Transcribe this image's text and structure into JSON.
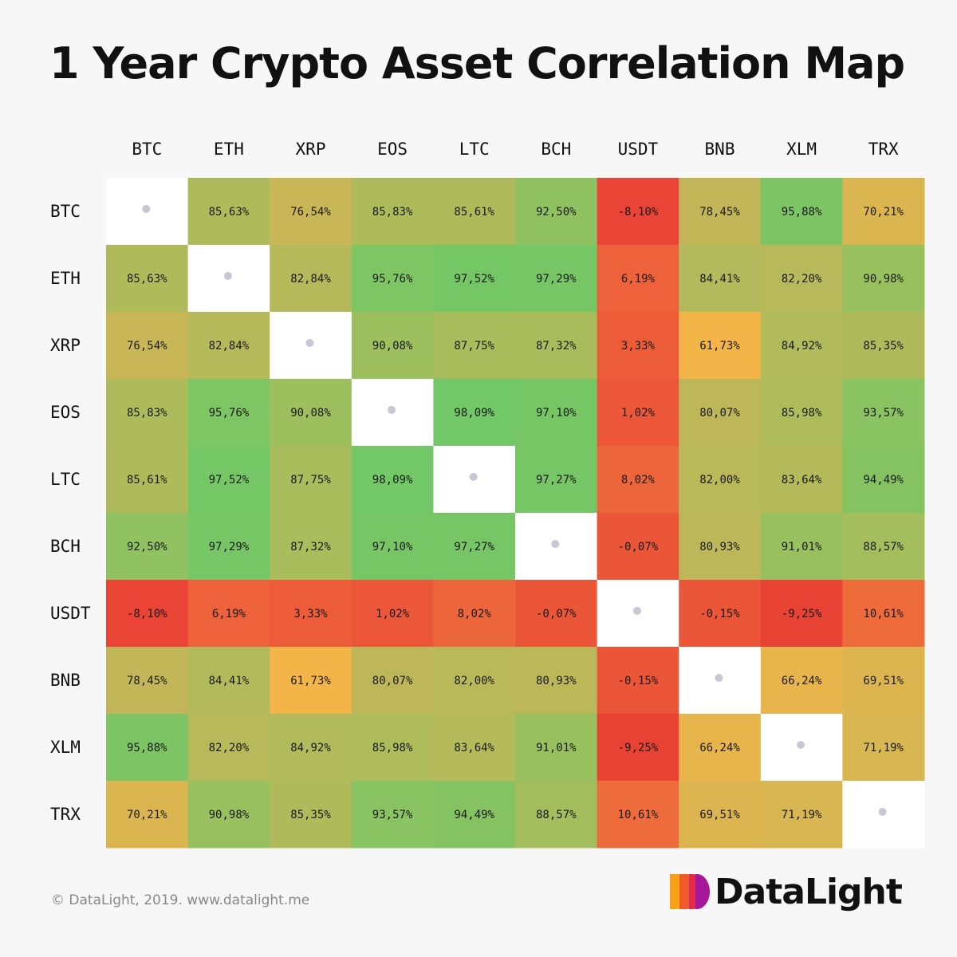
{
  "title": "1 Year Crypto Asset Correlation Map",
  "footer": {
    "copyright": "© DataLight, 2019. www.datalight.me",
    "logo_text": "DataLight",
    "logo_icon": "datalight-logo-icon"
  },
  "colors": {
    "background": "#f7f7f7",
    "diagonal": "#ffffff",
    "diagonal_dot": "#c8c8d4",
    "scale_low": "#e84034",
    "scale_mid_low": "#ee6a3c",
    "scale_mid": "#f3b548",
    "scale_mid_high": "#c4b658",
    "scale_high": "#a8bd5c",
    "scale_top": "#72c766"
  },
  "chart_data": {
    "type": "heatmap",
    "title": "1 Year Crypto Asset Correlation Map",
    "unit": "%",
    "decimal_separator": ",",
    "x_categories": [
      "BTC",
      "ETH",
      "XRP",
      "EOS",
      "LTC",
      "BCH",
      "USDT",
      "BNB",
      "XLM",
      "TRX"
    ],
    "y_categories": [
      "BTC",
      "ETH",
      "XRP",
      "EOS",
      "LTC",
      "BCH",
      "USDT",
      "BNB",
      "XLM",
      "TRX"
    ],
    "values": [
      [
        null,
        85.63,
        76.54,
        85.83,
        85.61,
        92.5,
        -8.1,
        78.45,
        95.88,
        70.21
      ],
      [
        85.63,
        null,
        82.84,
        95.76,
        97.52,
        97.29,
        6.19,
        84.41,
        82.2,
        90.98
      ],
      [
        76.54,
        82.84,
        null,
        90.08,
        87.75,
        87.32,
        3.33,
        61.73,
        84.92,
        85.35
      ],
      [
        85.83,
        95.76,
        90.08,
        null,
        98.09,
        97.1,
        1.02,
        80.07,
        85.98,
        93.57
      ],
      [
        85.61,
        97.52,
        87.75,
        98.09,
        null,
        97.27,
        8.02,
        82.0,
        83.64,
        94.49
      ],
      [
        92.5,
        97.29,
        87.32,
        97.1,
        97.27,
        null,
        -0.07,
        80.93,
        91.01,
        88.57
      ],
      [
        -8.1,
        6.19,
        3.33,
        1.02,
        8.02,
        -0.07,
        null,
        -0.15,
        -9.25,
        10.61
      ],
      [
        78.45,
        84.41,
        61.73,
        80.07,
        82.0,
        80.93,
        -0.15,
        null,
        66.24,
        69.51
      ],
      [
        95.88,
        82.2,
        84.92,
        85.98,
        83.64,
        91.01,
        -9.25,
        66.24,
        null,
        71.19
      ],
      [
        70.21,
        90.98,
        85.35,
        93.57,
        94.49,
        88.57,
        10.61,
        69.51,
        71.19,
        null
      ]
    ],
    "diagonal": "empty-dot",
    "grid": false,
    "legend": "none"
  }
}
